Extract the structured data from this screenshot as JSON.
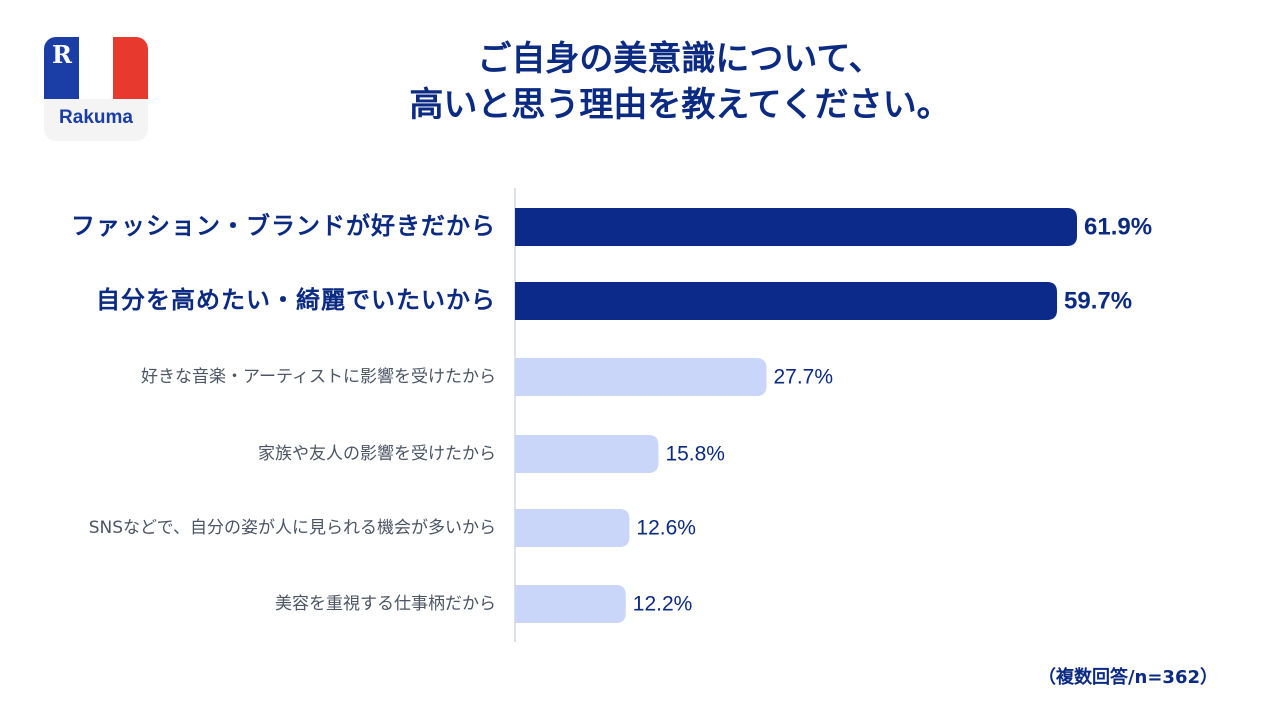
{
  "logo": {
    "mark": "R",
    "name": "Rakuma"
  },
  "header": {
    "title_line1": "ご自身の美意識について、",
    "title_line2": "高いと思う理由を教えてください。"
  },
  "footnote": "（複数回答/n=362）",
  "colors": {
    "highlight": "#0c2a8a",
    "normal": "#c9d6fa",
    "text": "#0b2a82",
    "axis": "#cfd6e6"
  },
  "chart_data": {
    "type": "bar",
    "orientation": "horizontal",
    "categories": [
      "ファッション・ブランドが好きだから",
      "自分を高めたい・綺麗でいたいから",
      "好きな音楽・アーティストに影響を受けたから",
      "家族や友人の影響を受けたから",
      "SNSなどで、自分の姿が人に見られる機会が多いから",
      "美容を重視する仕事柄だから"
    ],
    "values": [
      61.9,
      59.7,
      27.7,
      15.8,
      12.6,
      12.2
    ],
    "value_labels": [
      "61.9%",
      "59.7%",
      "27.7%",
      "15.8%",
      "12.6%",
      "12.2%"
    ],
    "highlighted": [
      true,
      true,
      false,
      false,
      false,
      false
    ],
    "unit": "%",
    "xlim": [
      0,
      61.9
    ]
  }
}
